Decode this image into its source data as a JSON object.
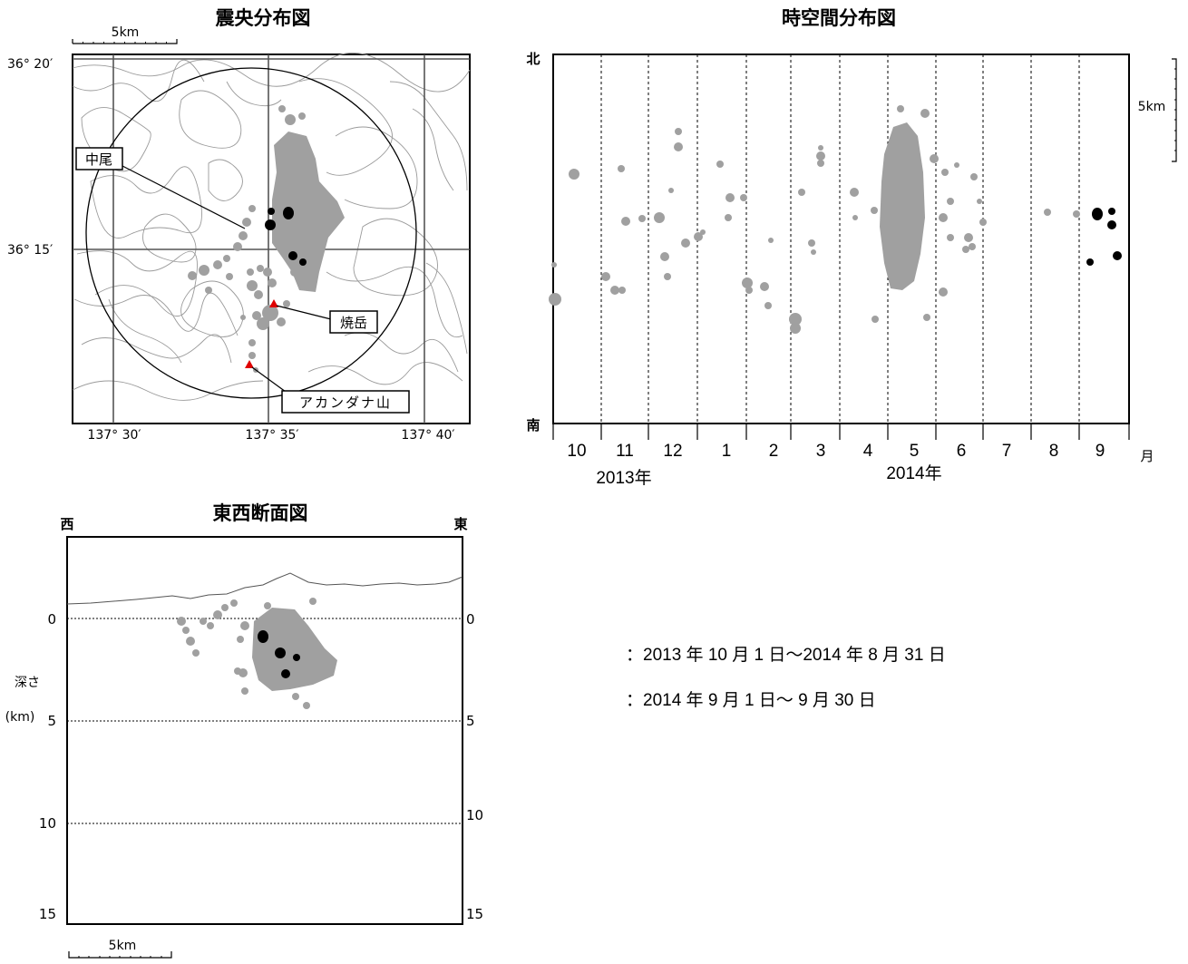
{
  "epicenter_map": {
    "title": "震央分布図",
    "scale_label": "5km",
    "lat_labels": [
      "36° 20′",
      "36° 15′"
    ],
    "lon_labels": [
      "137° 30′",
      "137° 35′",
      "137° 40′"
    ],
    "place_labels": {
      "nakao": "中尾",
      "yakedake": "焼岳",
      "akandana": "アカンダナ山"
    }
  },
  "time_space": {
    "title": "時空間分布図",
    "north_label": "北",
    "south_label": "南",
    "scale_label": "5km",
    "month_ticks": [
      "10",
      "11",
      "12",
      "1",
      "2",
      "3",
      "4",
      "5",
      "6",
      "7",
      "8",
      "9"
    ],
    "month_unit": "月",
    "year_2013": "2013年",
    "year_2014": "2014年"
  },
  "cross_section": {
    "title": "東西断面図",
    "west_label": "西",
    "east_label": "東",
    "depth_label_line1": "深さ",
    "depth_label_line2": "(km)",
    "depth_ticks": [
      "0",
      "5",
      "10",
      "15"
    ],
    "scale_label": "5km"
  },
  "legend": {
    "period_gray": "：2013 年 10 月 1 日～2014 年 8 月 31 日",
    "period_black": "：2014 年 9 月 1 日～ 9 月 30 日",
    "gray_color": "#a0a0a0",
    "black_color": "#000000"
  },
  "markers": {
    "volcano_color": "#e00000"
  }
}
